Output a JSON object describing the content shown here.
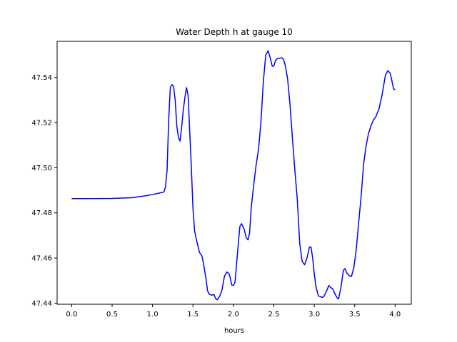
{
  "chart_data": {
    "type": "line",
    "title": "Water Depth h at gauge 10",
    "xlabel": "hours",
    "ylabel": "",
    "xlim": [
      -0.18,
      4.2
    ],
    "ylim": [
      47.4395,
      47.556
    ],
    "grid": false,
    "xticks": [
      0.0,
      0.5,
      1.0,
      1.5,
      2.0,
      2.5,
      3.0,
      3.5,
      4.0
    ],
    "xtick_labels": [
      "0.0",
      "0.5",
      "1.0",
      "1.5",
      "2.0",
      "2.5",
      "3.0",
      "3.5",
      "4.0"
    ],
    "yticks": [
      47.44,
      47.46,
      47.48,
      47.5,
      47.52,
      47.54
    ],
    "ytick_labels": [
      "47.44",
      "47.46",
      "47.48",
      "47.50",
      "47.52",
      "47.54"
    ],
    "series": [
      {
        "color": "#0000ff",
        "x": [
          0.0,
          0.25,
          0.5,
          0.75,
          0.9,
          1.0,
          1.08,
          1.14,
          1.16,
          1.18,
          1.2,
          1.22,
          1.24,
          1.26,
          1.28,
          1.3,
          1.32,
          1.34,
          1.36,
          1.38,
          1.4,
          1.42,
          1.44,
          1.46,
          1.48,
          1.5,
          1.52,
          1.55,
          1.58,
          1.61,
          1.63,
          1.66,
          1.68,
          1.7,
          1.73,
          1.76,
          1.78,
          1.8,
          1.83,
          1.86,
          1.89,
          1.92,
          1.95,
          1.98,
          2.0,
          2.02,
          2.05,
          2.08,
          2.1,
          2.13,
          2.16,
          2.18,
          2.2,
          2.22,
          2.25,
          2.28,
          2.31,
          2.34,
          2.37,
          2.4,
          2.43,
          2.46,
          2.48,
          2.5,
          2.52,
          2.55,
          2.58,
          2.6,
          2.62,
          2.64,
          2.67,
          2.7,
          2.73,
          2.76,
          2.79,
          2.82,
          2.85,
          2.88,
          2.91,
          2.94,
          2.96,
          2.98,
          3.0,
          3.02,
          3.05,
          3.08,
          3.1,
          3.12,
          3.15,
          3.18,
          3.2,
          3.23,
          3.25,
          3.28,
          3.3,
          3.33,
          3.36,
          3.38,
          3.4,
          3.43,
          3.46,
          3.49,
          3.52,
          3.55,
          3.58,
          3.61,
          3.64,
          3.67,
          3.7,
          3.73,
          3.76,
          3.8,
          3.84,
          3.88,
          3.91,
          3.94,
          3.96,
          3.98,
          4.0
        ],
        "y": [
          47.4863,
          47.4863,
          47.4864,
          47.4867,
          47.4875,
          47.4881,
          47.4887,
          47.4892,
          47.4915,
          47.499,
          47.5215,
          47.5355,
          47.5368,
          47.536,
          47.53,
          47.5185,
          47.5135,
          47.5118,
          47.518,
          47.5255,
          47.531,
          47.5355,
          47.532,
          47.516,
          47.5,
          47.482,
          47.472,
          47.467,
          47.4625,
          47.461,
          47.4575,
          47.451,
          47.4455,
          47.444,
          47.4435,
          47.4438,
          47.442,
          47.4415,
          47.443,
          47.446,
          47.452,
          47.4538,
          47.4528,
          47.448,
          47.4478,
          47.4492,
          47.462,
          47.474,
          47.4752,
          47.473,
          47.469,
          47.468,
          47.471,
          47.482,
          47.492,
          47.501,
          47.508,
          47.52,
          47.538,
          47.55,
          47.5518,
          47.548,
          47.545,
          47.545,
          47.5475,
          47.5485,
          47.5485,
          47.5487,
          47.548,
          47.5455,
          47.5395,
          47.528,
          47.513,
          47.499,
          47.486,
          47.4665,
          47.4585,
          47.457,
          47.46,
          47.4648,
          47.4648,
          47.46,
          47.453,
          47.4475,
          47.4432,
          47.4428,
          47.4425,
          47.443,
          47.4452,
          47.4478,
          47.447,
          47.4462,
          47.4445,
          47.4425,
          47.4418,
          47.447,
          47.4545,
          47.4553,
          47.4535,
          47.4522,
          47.4518,
          47.4558,
          47.464,
          47.476,
          47.4875,
          47.5015,
          47.5095,
          47.515,
          47.5185,
          47.521,
          47.5225,
          47.526,
          47.5325,
          47.541,
          47.543,
          47.5418,
          47.5385,
          47.535,
          47.5345
        ]
      }
    ]
  }
}
